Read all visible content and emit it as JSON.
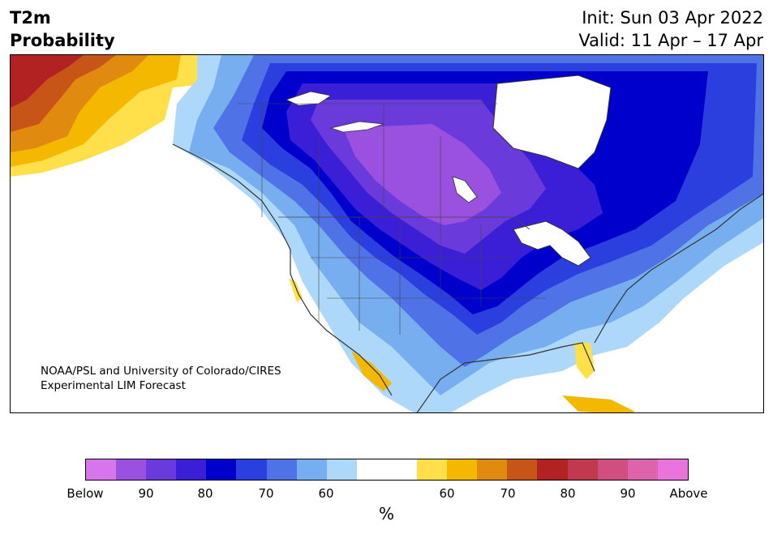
{
  "header": {
    "variable": "T2m",
    "subtitle": "Probability",
    "init": "Init: Sun 03 Apr 2022",
    "valid": "Valid: 11 Apr – 17 Apr"
  },
  "map": {
    "region": "North America",
    "credit_line1": "NOAA/PSL and University of Colorado/CIRES",
    "credit_line2": "Experimental LIM Forecast",
    "colors": {
      "below_90": "#9b51e0",
      "below_80": "#6a3adb",
      "below_70": "#3a1fd6",
      "below_60": "#0000cc",
      "below_50": "#2a3fde",
      "below_40": "#4f73e6",
      "below_30": "#76aef0",
      "below_20": "#add8fa",
      "neutral": "#ffffff",
      "above_40": "#ffe04a",
      "above_50": "#f5b800",
      "above_60": "#e08a10",
      "above_70": "#c85518",
      "above_80": "#b22222",
      "land_outline": "#333333"
    }
  },
  "colorbar": {
    "unit": "%",
    "ticks": [
      "Below",
      "90",
      "80",
      "70",
      "60",
      "60",
      "70",
      "80",
      "90",
      "Above"
    ],
    "colors": [
      "#d676ea",
      "#9b51e0",
      "#6a3adb",
      "#3a1fd6",
      "#0000cc",
      "#2a3fde",
      "#4f73e6",
      "#76aef0",
      "#add8fa",
      "#ffffff",
      "#ffffff",
      "#ffe04a",
      "#f5b800",
      "#e08a10",
      "#c85518",
      "#b22222",
      "#c0394f",
      "#d14f80",
      "#dd64ab",
      "#e874dc"
    ]
  }
}
